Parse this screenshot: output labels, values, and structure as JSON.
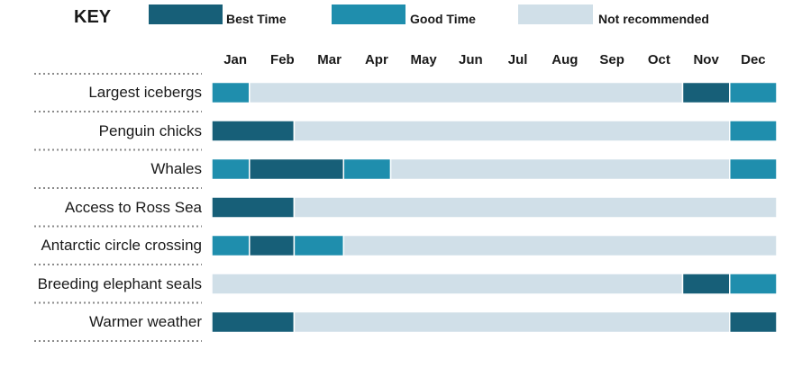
{
  "key": {
    "title": "KEY",
    "items": [
      {
        "label": "Best Time",
        "color": "#175f78"
      },
      {
        "label": "Good Time",
        "color": "#1f8ead"
      },
      {
        "label": "Not recommended",
        "color": "#d0dfe8"
      }
    ]
  },
  "chart_data": {
    "type": "table",
    "categories": [
      "Jan",
      "Feb",
      "Mar",
      "Apr",
      "May",
      "Jun",
      "Jul",
      "Aug",
      "Sep",
      "Oct",
      "Nov",
      "Dec"
    ],
    "legend": [
      "Best Time",
      "Good Time",
      "Not recommended"
    ],
    "legend_position": "top",
    "rows": [
      {
        "label": "Largest icebergs",
        "segments": [
          {
            "start": 0,
            "end": 0.8,
            "rating": "Good Time"
          },
          {
            "start": 0.8,
            "end": 10,
            "rating": "Not recommended"
          },
          {
            "start": 10,
            "end": 11,
            "rating": "Best Time"
          },
          {
            "start": 11,
            "end": 12,
            "rating": "Good Time"
          }
        ]
      },
      {
        "label": "Penguin chicks",
        "segments": [
          {
            "start": 0,
            "end": 1.75,
            "rating": "Best Time"
          },
          {
            "start": 1.75,
            "end": 11,
            "rating": "Not recommended"
          },
          {
            "start": 11,
            "end": 12,
            "rating": "Good Time"
          }
        ]
      },
      {
        "label": "Whales",
        "segments": [
          {
            "start": 0,
            "end": 0.8,
            "rating": "Good Time"
          },
          {
            "start": 0.8,
            "end": 2.8,
            "rating": "Best Time"
          },
          {
            "start": 2.8,
            "end": 3.8,
            "rating": "Good Time"
          },
          {
            "start": 3.8,
            "end": 11,
            "rating": "Not recommended"
          },
          {
            "start": 11,
            "end": 12,
            "rating": "Good Time"
          }
        ]
      },
      {
        "label": "Access to Ross Sea",
        "segments": [
          {
            "start": 0,
            "end": 1.75,
            "rating": "Best Time"
          },
          {
            "start": 1.75,
            "end": 12,
            "rating": "Not recommended"
          }
        ]
      },
      {
        "label": "Antarctic circle crossing",
        "segments": [
          {
            "start": 0,
            "end": 0.8,
            "rating": "Good Time"
          },
          {
            "start": 0.8,
            "end": 1.75,
            "rating": "Best Time"
          },
          {
            "start": 1.75,
            "end": 2.8,
            "rating": "Good Time"
          },
          {
            "start": 2.8,
            "end": 12,
            "rating": "Not recommended"
          }
        ]
      },
      {
        "label": "Breeding elephant seals",
        "segments": [
          {
            "start": 0,
            "end": 10,
            "rating": "Not recommended"
          },
          {
            "start": 10,
            "end": 11,
            "rating": "Best Time"
          },
          {
            "start": 11,
            "end": 12,
            "rating": "Good Time"
          }
        ]
      },
      {
        "label": "Warmer weather",
        "segments": [
          {
            "start": 0,
            "end": 1.75,
            "rating": "Best Time"
          },
          {
            "start": 1.75,
            "end": 11,
            "rating": "Not recommended"
          },
          {
            "start": 11,
            "end": 12,
            "rating": "Best Time"
          }
        ]
      }
    ]
  }
}
